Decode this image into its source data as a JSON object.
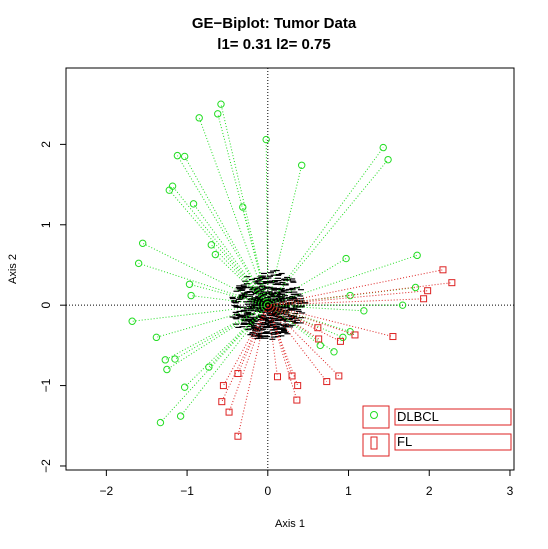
{
  "chart_data": {
    "type": "scatter",
    "title_line1": "GE−Biplot: Tumor Data",
    "title_line2": "l1= 0.31 l2= 0.75",
    "xlabel": "Axis 1",
    "ylabel": "Axis 2",
    "xlim": [
      -2.5,
      3.05
    ],
    "ylim": [
      -2.05,
      2.95
    ],
    "x_ticks": [
      -2,
      -1,
      0,
      1,
      2,
      3
    ],
    "x_tick_labels": [
      "−2",
      "−1",
      "0",
      "1",
      "2",
      "3"
    ],
    "y_ticks": [
      -2,
      -1,
      0,
      1,
      2
    ],
    "y_tick_labels": [
      "−2",
      "−1",
      "0",
      "1",
      "2"
    ],
    "reference_lines": "dotted lines at x = 0 and y = 0",
    "grid": false,
    "legend_position": "bottom-right",
    "colors": {
      "DLBCL": "#22dd22",
      "FL": "#dd2222",
      "genes": "#000000",
      "reference_lines": "#000000"
    },
    "series": [
      {
        "name": "DLBCL",
        "marker": "circle",
        "x": [
          -0.58,
          -0.62,
          -0.85,
          -0.02,
          0.42,
          -1.12,
          -1.03,
          -1.18,
          -1.22,
          1.43,
          1.49,
          -0.92,
          -0.31,
          -1.55,
          -0.7,
          -0.65,
          -1.6,
          1.85,
          0.97,
          -0.97,
          -0.95,
          -1.68,
          1.83,
          1.67,
          -1.38,
          1.02,
          1.19,
          -1.27,
          -1.15,
          -1.25,
          -0.73,
          -1.03,
          0.82,
          0.93,
          1.02,
          0.65,
          -1.08,
          -1.33
        ],
        "y": [
          2.5,
          2.38,
          2.33,
          2.06,
          1.74,
          1.86,
          1.85,
          1.48,
          1.43,
          1.96,
          1.81,
          1.26,
          1.22,
          0.77,
          0.75,
          0.63,
          0.52,
          0.62,
          0.58,
          0.26,
          0.12,
          -0.2,
          0.22,
          0.0,
          -0.4,
          0.12,
          -0.07,
          -0.68,
          -0.67,
          -0.8,
          -0.77,
          -1.02,
          -0.58,
          -0.4,
          -0.33,
          -0.5,
          -1.38,
          -1.46
        ]
      },
      {
        "name": "FL",
        "marker": "square",
        "x": [
          2.17,
          2.28,
          1.98,
          1.93,
          0.62,
          0.63,
          1.08,
          0.9,
          1.55,
          0.3,
          0.12,
          0.37,
          0.73,
          0.88,
          0.36,
          -0.37,
          -0.55,
          -0.57,
          -0.48,
          -0.37
        ],
        "y": [
          0.44,
          0.28,
          0.18,
          0.08,
          -0.28,
          -0.42,
          -0.37,
          -0.45,
          -0.39,
          -0.88,
          -0.89,
          -1.0,
          -0.95,
          -0.88,
          -1.18,
          -0.85,
          -1.0,
          -1.2,
          -1.33,
          -1.63
        ]
      }
    ],
    "legend": [
      {
        "label": "DLBCL",
        "marker": "circle"
      },
      {
        "label": "FL",
        "marker": "square"
      }
    ]
  }
}
